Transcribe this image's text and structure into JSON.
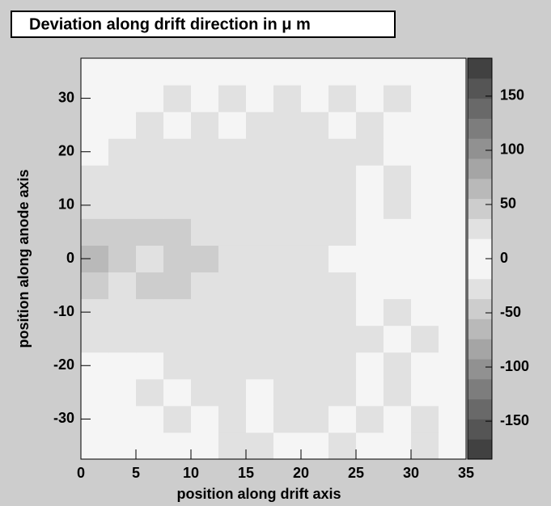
{
  "chart_data": {
    "type": "heatmap",
    "title": "Deviation along drift direction in μ m",
    "x_label": "position along drift axis",
    "y_label": "position along anode axis",
    "xlim": [
      0,
      35
    ],
    "ylim": [
      -37.5,
      37.5
    ],
    "xticks": [
      0,
      5,
      10,
      15,
      20,
      25,
      30,
      35
    ],
    "yticks": [
      -30,
      -20,
      -10,
      0,
      10,
      20,
      30
    ],
    "zlim": [
      -185,
      185
    ],
    "zticks": [
      -150,
      -100,
      -50,
      0,
      50,
      100,
      150
    ],
    "xbins": [
      0,
      2.5,
      5,
      7.5,
      10,
      12.5,
      15,
      17.5,
      20,
      22.5,
      25,
      27.5,
      30,
      32.5,
      35
    ],
    "ybins": [
      -37.5,
      -32.5,
      -27.5,
      -22.5,
      -17.5,
      -12.5,
      -7.5,
      -2.5,
      2.5,
      7.5,
      12.5,
      17.5,
      22.5,
      27.5,
      32.5,
      37.5
    ],
    "z": [
      [
        -10,
        -15,
        -10,
        -15,
        -10,
        -20,
        -25,
        -15,
        -10,
        -20,
        -15,
        -10,
        -20,
        -10
      ],
      [
        -10,
        -10,
        -15,
        -20,
        -15,
        -20,
        -15,
        -25,
        -20,
        -15,
        -20,
        -15,
        -20,
        -10
      ],
      [
        -15,
        -10,
        -20,
        -15,
        -25,
        -20,
        -15,
        -20,
        -25,
        -20,
        -15,
        -20,
        -15,
        -10
      ],
      [
        -10,
        -15,
        -15,
        -25,
        -20,
        -25,
        -25,
        -20,
        -20,
        -25,
        -15,
        -20,
        -15,
        -10
      ],
      [
        -20,
        -25,
        -30,
        -20,
        -25,
        -30,
        -20,
        -30,
        -25,
        -20,
        -30,
        -15,
        -20,
        -10
      ],
      [
        -25,
        -35,
        -30,
        -35,
        -25,
        -30,
        -25,
        -35,
        -30,
        -25,
        -15,
        -20,
        -15,
        -10
      ],
      [
        -45,
        -35,
        -40,
        -45,
        -35,
        -30,
        -35,
        -25,
        -30,
        -20,
        -15,
        -15,
        -10,
        -10
      ],
      [
        -60,
        -50,
        -35,
        -50,
        -40,
        -25,
        -35,
        -30,
        -25,
        -15,
        -10,
        -15,
        -10,
        -10
      ],
      [
        -50,
        -40,
        -40,
        -45,
        -35,
        -30,
        -30,
        -25,
        -30,
        -20,
        -15,
        -15,
        -10,
        -10
      ],
      [
        -25,
        -30,
        -30,
        -30,
        -25,
        -35,
        -25,
        -30,
        -25,
        -20,
        -15,
        -20,
        -15,
        -10
      ],
      [
        -20,
        -25,
        -25,
        -20,
        -30,
        -25,
        -30,
        -25,
        -20,
        -25,
        -15,
        -20,
        -15,
        -10
      ],
      [
        -15,
        -20,
        -20,
        -25,
        -20,
        -25,
        -20,
        -30,
        -25,
        -20,
        -20,
        -15,
        -15,
        -10
      ],
      [
        -10,
        -15,
        -20,
        -15,
        -20,
        -15,
        -25,
        -20,
        -20,
        -15,
        -20,
        -15,
        -15,
        -10
      ],
      [
        -10,
        -15,
        -15,
        -20,
        -15,
        -20,
        -15,
        -20,
        -15,
        -20,
        -15,
        -20,
        -15,
        -10
      ],
      [
        -5,
        -10,
        -10,
        -10,
        -10,
        -15,
        -10,
        -15,
        -10,
        -15,
        -10,
        -15,
        -10,
        -5
      ]
    ]
  }
}
